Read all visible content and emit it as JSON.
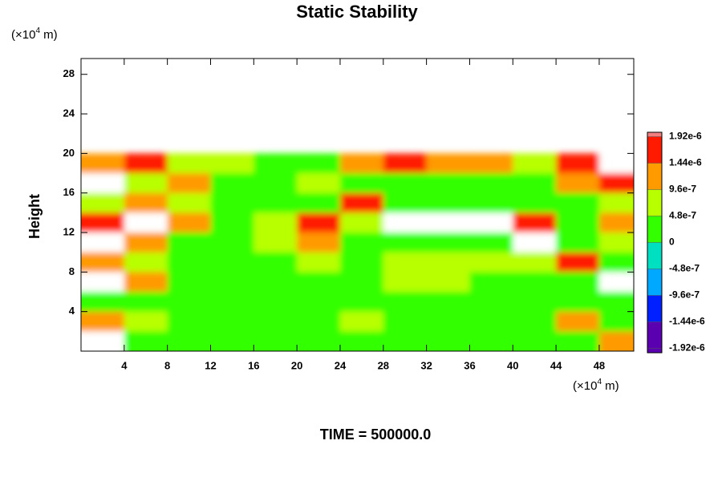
{
  "chart_data": {
    "type": "contour",
    "title": "Static Stability",
    "ylabel": "Height",
    "y_unit": {
      "pre": "(×10",
      "exp": "4",
      "post": " m)"
    },
    "x_unit": {
      "pre": "(×10",
      "exp": "4",
      "post": " m)"
    },
    "footer": "TIME = 500000.0",
    "xlim": [
      0,
      51.2
    ],
    "ylim": [
      0,
      29.6
    ],
    "xticks": [
      4,
      8,
      12,
      16,
      20,
      24,
      28,
      32,
      36,
      40,
      44,
      48
    ],
    "yticks": [
      4,
      8,
      12,
      16,
      20,
      24,
      28
    ],
    "grid_x": [
      2,
      6,
      10,
      14,
      18,
      22,
      26,
      30,
      34,
      38,
      42,
      46,
      50
    ],
    "grid_y": [
      19,
      17,
      15,
      13,
      11,
      9,
      7,
      5,
      3,
      1
    ],
    "z": [
      [
        1.2e-06,
        1.5e-06,
        6e-07,
        9e-07,
        3e-07,
        3e-07,
        1.2e-06,
        1.5e-06,
        1.4e-06,
        1.2e-06,
        6e-07,
        1.5e-06,
        2.2e-06
      ],
      [
        2.2e-06,
        9e-07,
        1.2e-06,
        3e-07,
        2e-07,
        6e-07,
        3e-07,
        4e-07,
        2e-07,
        2e-07,
        2e-07,
        1.2e-06,
        1.5e-06
      ],
      [
        6e-07,
        1.2e-06,
        9e-07,
        3e-07,
        2e-07,
        4e-07,
        1.5e-06,
        2e-07,
        2e-07,
        2e-07,
        2e-07,
        2e-07,
        6e-07
      ],
      [
        1.5e-06,
        2.2e-06,
        1.4e-06,
        3e-07,
        6e-07,
        1.5e-06,
        6e-07,
        2.2e-06,
        2.2e-06,
        2.2e-06,
        1.5e-06,
        3e-07,
        1.2e-06
      ],
      [
        2.2e-06,
        1.2e-06,
        4e-07,
        2e-07,
        9e-07,
        1.4e-06,
        2e-07,
        4e-07,
        4e-07,
        4e-07,
        2.2e-06,
        2e-07,
        9e-07
      ],
      [
        1.2e-06,
        6e-07,
        2e-07,
        2e-07,
        2e-07,
        9e-07,
        3e-07,
        6e-07,
        9e-07,
        6e-07,
        6e-07,
        1.5e-06,
        2e-07
      ],
      [
        2.2e-06,
        1.2e-06,
        2e-07,
        3e-07,
        2e-07,
        3e-07,
        2e-07,
        6e-07,
        6e-07,
        3e-07,
        2e-07,
        3e-07,
        2.2e-06
      ],
      [
        3e-07,
        2e-07,
        2e-07,
        2e-07,
        2e-07,
        2e-07,
        2e-07,
        2e-07,
        3e-07,
        2e-07,
        2e-07,
        2e-07,
        2e-07
      ],
      [
        1.2e-06,
        6e-07,
        2e-07,
        2e-07,
        3e-07,
        2e-07,
        6e-07,
        3e-07,
        3e-07,
        2e-07,
        2e-07,
        1.2e-06,
        2e-07
      ],
      [
        2.2e-06,
        2e-07,
        2e-07,
        2e-07,
        2e-07,
        2e-07,
        2e-07,
        2e-07,
        2e-07,
        2e-07,
        2e-07,
        2e-07,
        1.2e-06
      ]
    ],
    "colorbar": {
      "lim": [
        -2e-06,
        2e-06
      ],
      "ticks": [
        {
          "value": -1.92e-06,
          "label": "-1.92e-6"
        },
        {
          "value": -1.44e-06,
          "label": "-1.44e-6"
        },
        {
          "value": -9.6e-07,
          "label": "-9.6e-7"
        },
        {
          "value": -4.8e-07,
          "label": "-4.8e-7"
        },
        0,
        {
          "value": 4.8e-07,
          "label": "4.8e-7"
        },
        {
          "value": 9.6e-07,
          "label": "9.6e-7"
        },
        {
          "value": 1.44e-06,
          "label": "1.44e-6"
        },
        {
          "value": 1.92e-06,
          "label": "1.92e-6"
        }
      ],
      "colors": [
        "#5a00b0",
        "#0020ff",
        "#00a8ff",
        "#00e0c0",
        "#33ff00",
        "#b8ff00",
        "#ff9a00",
        "#ff1a00"
      ],
      "over_color": "#ffffff",
      "top_color": "#f08080"
    }
  }
}
